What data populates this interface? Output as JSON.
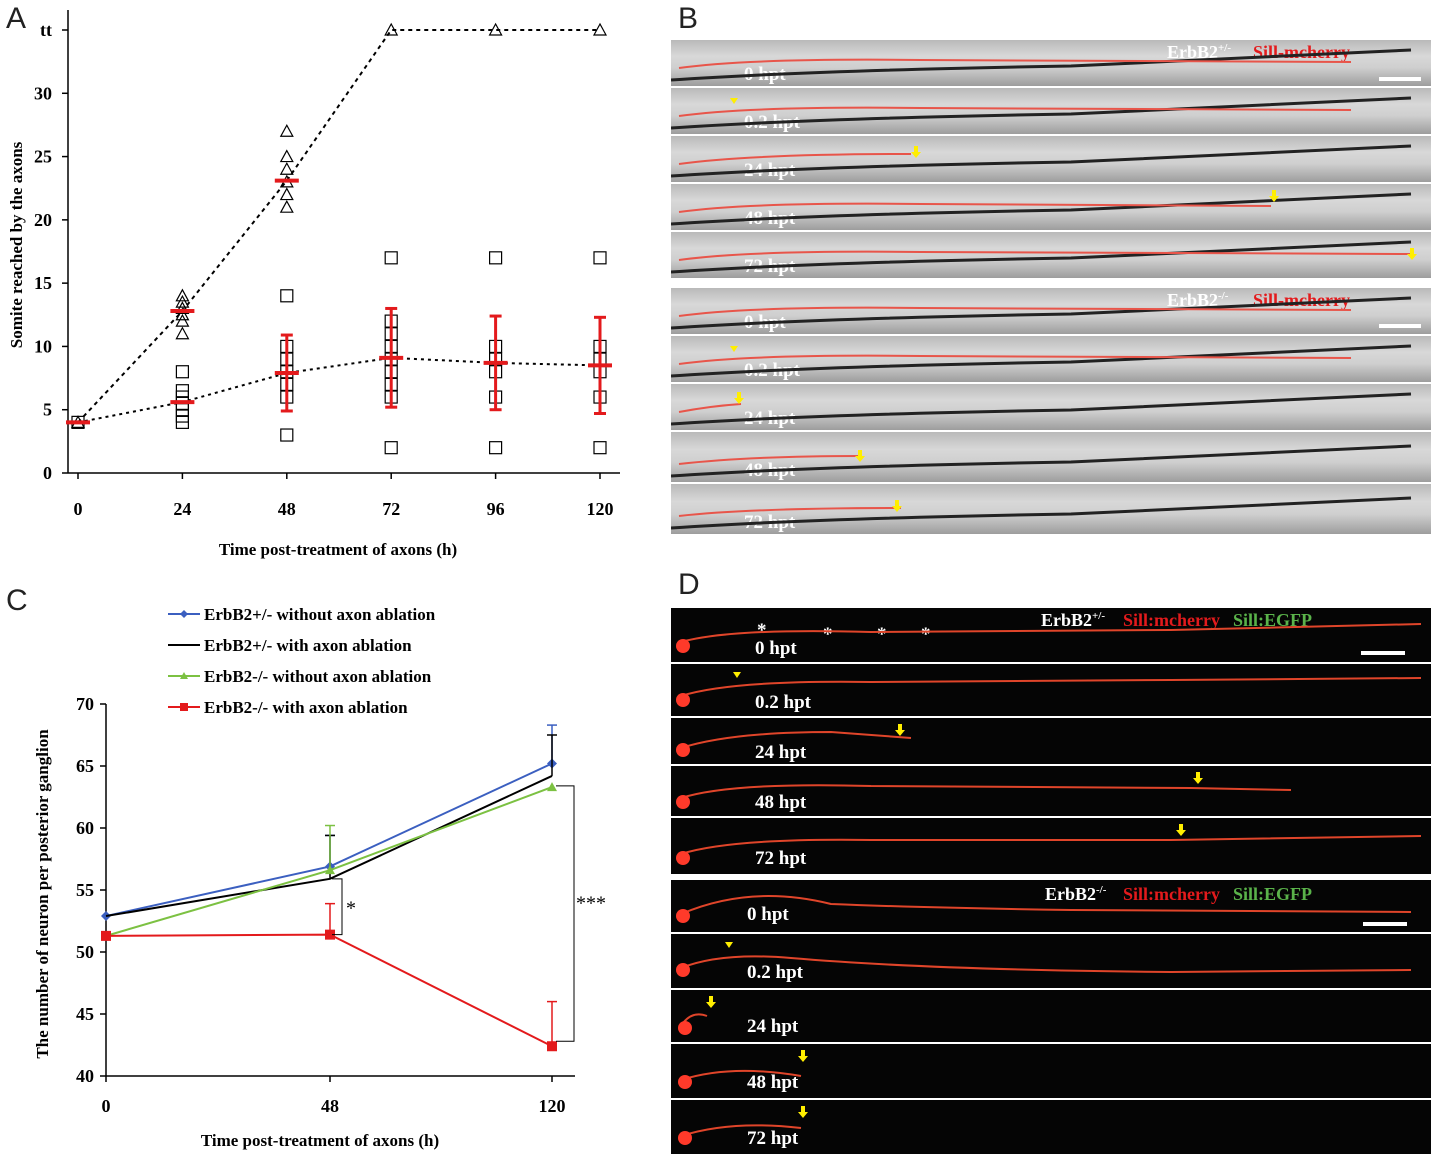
{
  "panels": {
    "a": "A",
    "b": "B",
    "c": "C",
    "d": "D"
  },
  "colors": {
    "series_red": "#e31a1c",
    "blue": "#3b5fc0",
    "black": "#000000",
    "green": "#7cc142",
    "arrow": "#ffee00",
    "dashed": "#000000"
  },
  "chart_data": [
    {
      "type": "scatter",
      "ylabel": "Somite reached by the axons",
      "xlabel": "Time post-treatment of axons (h)",
      "x_ticks": [
        "0",
        "24",
        "48",
        "72",
        "96",
        "120"
      ],
      "y_ticks": [
        "0",
        "5",
        "10",
        "15",
        "20",
        "25",
        "30",
        "tt"
      ],
      "ylim": [
        0,
        35
      ],
      "triangles": [
        {
          "x": 0,
          "y": 4
        },
        {
          "x": 24,
          "y": 14
        },
        {
          "x": 24,
          "y": 13.5
        },
        {
          "x": 24,
          "y": 13
        },
        {
          "x": 24,
          "y": 12.5
        },
        {
          "x": 24,
          "y": 12
        },
        {
          "x": 24,
          "y": 11
        },
        {
          "x": 48,
          "y": 27
        },
        {
          "x": 48,
          "y": 25
        },
        {
          "x": 48,
          "y": 24
        },
        {
          "x": 48,
          "y": 23
        },
        {
          "x": 48,
          "y": 22
        },
        {
          "x": 48,
          "y": 21
        },
        {
          "x": 72,
          "y": 35
        },
        {
          "x": 96,
          "y": 35
        },
        {
          "x": 120,
          "y": 35
        }
      ],
      "squares": [
        {
          "x": 0,
          "y": 4
        },
        {
          "x": 24,
          "y": 8
        },
        {
          "x": 24,
          "y": 6.5
        },
        {
          "x": 24,
          "y": 6
        },
        {
          "x": 24,
          "y": 5.5
        },
        {
          "x": 24,
          "y": 5
        },
        {
          "x": 24,
          "y": 4.5
        },
        {
          "x": 24,
          "y": 4
        },
        {
          "x": 48,
          "y": 14
        },
        {
          "x": 48,
          "y": 10
        },
        {
          "x": 48,
          "y": 9
        },
        {
          "x": 48,
          "y": 8
        },
        {
          "x": 48,
          "y": 7
        },
        {
          "x": 48,
          "y": 6
        },
        {
          "x": 48,
          "y": 3
        },
        {
          "x": 72,
          "y": 17
        },
        {
          "x": 72,
          "y": 12
        },
        {
          "x": 72,
          "y": 11
        },
        {
          "x": 72,
          "y": 10
        },
        {
          "x": 72,
          "y": 9
        },
        {
          "x": 72,
          "y": 8
        },
        {
          "x": 72,
          "y": 7
        },
        {
          "x": 72,
          "y": 6
        },
        {
          "x": 72,
          "y": 2
        },
        {
          "x": 96,
          "y": 17
        },
        {
          "x": 96,
          "y": 10
        },
        {
          "x": 96,
          "y": 9
        },
        {
          "x": 96,
          "y": 8
        },
        {
          "x": 96,
          "y": 6
        },
        {
          "x": 96,
          "y": 2
        },
        {
          "x": 120,
          "y": 17
        },
        {
          "x": 120,
          "y": 10
        },
        {
          "x": 120,
          "y": 9
        },
        {
          "x": 120,
          "y": 8
        },
        {
          "x": 120,
          "y": 6
        },
        {
          "x": 120,
          "y": 2
        }
      ],
      "means_triangle": [
        {
          "x": 0,
          "y": 4
        },
        {
          "x": 24,
          "y": 12.8
        },
        {
          "x": 48,
          "y": 23.1
        },
        {
          "x": 72,
          "y": 35
        },
        {
          "x": 96,
          "y": 35
        },
        {
          "x": 120,
          "y": 35
        }
      ],
      "means_square": [
        {
          "x": 0,
          "y": 4,
          "err": 0
        },
        {
          "x": 24,
          "y": 5.6,
          "err": 0
        },
        {
          "x": 48,
          "y": 7.9,
          "err": 3
        },
        {
          "x": 72,
          "y": 9.1,
          "err": 3.9
        },
        {
          "x": 96,
          "y": 8.7,
          "err": 3.7
        },
        {
          "x": 120,
          "y": 8.5,
          "err": 3.8
        }
      ]
    },
    {
      "type": "line",
      "ylabel": "The number of neuron per posterior ganglion",
      "xlabel": "Time post-treatment of axons (h)",
      "categories": [
        "0",
        "48",
        "120"
      ],
      "y_ticks": [
        "40",
        "45",
        "50",
        "55",
        "60",
        "65",
        "70"
      ],
      "ylim": [
        40,
        70
      ],
      "series": [
        {
          "name": "ErbB2+/- without axon ablation",
          "color": "#3b5fc0",
          "marker": "diamond",
          "values": [
            52.9,
            56.9,
            65.2
          ],
          "err": [
            0,
            2.5,
            3.1
          ]
        },
        {
          "name": "ErbB2+/- with axon ablation",
          "color": "#000000",
          "marker": "none",
          "values": [
            52.9,
            55.9,
            64.2
          ],
          "err": [
            0,
            3.5,
            3.3
          ]
        },
        {
          "name": "ErbB2-/- without axon ablation",
          "color": "#7cc142",
          "marker": "triangle",
          "values": [
            51.3,
            56.6,
            63.3
          ],
          "err": [
            0,
            3.6,
            0
          ]
        },
        {
          "name": "ErbB2-/- with axon ablation",
          "color": "#e31a1c",
          "marker": "square",
          "values": [
            51.3,
            51.4,
            42.4
          ],
          "err": [
            0,
            2.5,
            3.6
          ]
        }
      ],
      "significance": [
        "*",
        "***"
      ]
    }
  ],
  "panel_b": {
    "het": {
      "genotype": "ErbB2",
      "sup": "+/-",
      "reporter": "Sill-mcherry"
    },
    "hom": {
      "genotype": "ErbB2",
      "sup": "-/-",
      "reporter": "Sill-mcherry"
    },
    "timepoints": [
      "0 hpt",
      "0.2 hpt",
      "24 hpt",
      "48 hpt",
      "72 hpt"
    ]
  },
  "panel_d": {
    "het": {
      "genotype": "ErbB2",
      "sup": "+/-",
      "reporter_red": "Sill:mcherry",
      "reporter_green": "Sill:EGFP"
    },
    "hom": {
      "genotype": "ErbB2",
      "sup": "-/-",
      "reporter_red": "Sill:mcherry",
      "reporter_green": "Sill:EGFP"
    },
    "timepoints": [
      "0 hpt",
      "0.2 hpt",
      "24 hpt",
      "48 hpt",
      "72 hpt"
    ],
    "asterisk": "*"
  }
}
